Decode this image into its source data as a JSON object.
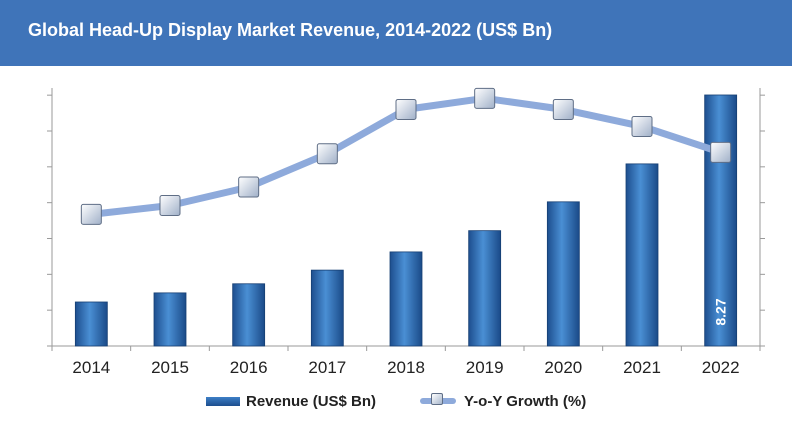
{
  "header": {
    "title": "Global Head-Up Display Market Revenue, 2014-2022 (US$ Bn)"
  },
  "chart_data": {
    "type": "bar+line",
    "title": "Global Head-Up Display Market Revenue, 2014-2022 (US$ Bn)",
    "categories": [
      "2014",
      "2015",
      "2016",
      "2017",
      "2018",
      "2019",
      "2020",
      "2021",
      "2022"
    ],
    "series": [
      {
        "name": "Revenue (US$ Bn)",
        "type": "bar",
        "axis": "left",
        "color": "#2b62a8",
        "values": [
          1.45,
          1.75,
          2.05,
          2.5,
          3.1,
          3.8,
          4.75,
          6.0,
          8.27
        ]
      },
      {
        "name": "Y-o-Y Growth (%)",
        "type": "line",
        "axis": "right",
        "color": "#8eaadb",
        "values": [
          17.8,
          19.0,
          21.5,
          26.0,
          32.0,
          33.5,
          32.0,
          29.7,
          26.2
        ]
      }
    ],
    "data_labels": [
      {
        "category": "2022",
        "series": "Revenue (US$ Bn)",
        "text": "8.27"
      }
    ],
    "ylim_left": [
      0,
      8.5
    ],
    "ylim_right": [
      0,
      34.9
    ],
    "legend": "bottom-center",
    "grid": false
  }
}
